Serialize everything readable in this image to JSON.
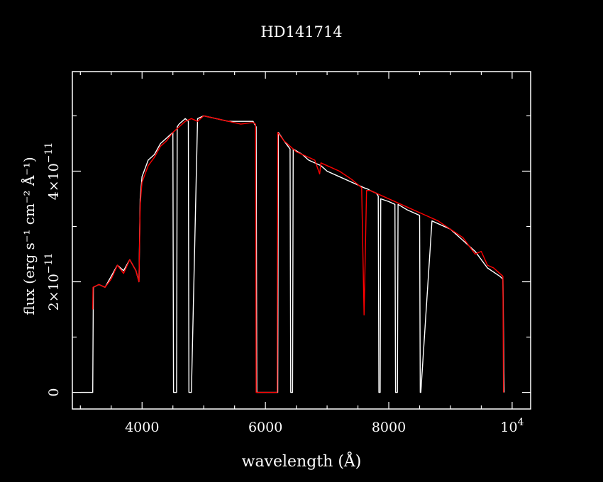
{
  "chart_data": {
    "type": "line",
    "title": "HD141714",
    "xlabel": "wavelength (Å)",
    "ylabel": "flux (erg s⁻¹ cm⁻² Å⁻¹)",
    "xlim": [
      2870,
      10300
    ],
    "ylim": [
      -3e-12,
      5.8e-11
    ],
    "xticks": [
      {
        "value": 4000,
        "label": "4000"
      },
      {
        "value": 6000,
        "label": "6000"
      },
      {
        "value": 8000,
        "label": "8000"
      },
      {
        "value": 10000,
        "label": "10",
        "exponent": "4"
      }
    ],
    "yticks": [
      {
        "value": 0,
        "label": "0"
      },
      {
        "value": 2e-11,
        "label": "2×10",
        "exponent": "−11"
      },
      {
        "value": 4e-11,
        "label": "4×10",
        "exponent": "−11"
      }
    ],
    "grid": false,
    "colors": {
      "background": "#000000",
      "axes": "#ffffff",
      "series_white": "#ffffff",
      "series_red": "#ff0000"
    },
    "series": [
      {
        "color": "#ffffff",
        "x": [
          3000,
          3200,
          3210,
          3300,
          3400,
          3500,
          3600,
          3700,
          3800,
          3900,
          3950,
          3970,
          4000,
          4100,
          4200,
          4300,
          4400,
          4500,
          4510,
          4520,
          4560,
          4570,
          4600,
          4700,
          4750,
          4760,
          4800,
          4900,
          5000,
          5200,
          5400,
          5600,
          5800,
          5850,
          5860,
          6200,
          6210,
          6300,
          6400,
          6410,
          6420,
          6440,
          6450,
          6600,
          6700,
          6900,
          7000,
          7200,
          7400,
          7600,
          7650,
          7700,
          7800,
          7830,
          7840,
          7860,
          7870,
          8000,
          8100,
          8110,
          8120,
          8140,
          8150,
          8300,
          8500,
          8510,
          8520,
          8700,
          9000,
          9200,
          9400,
          9600,
          9800,
          9850,
          9870
        ],
        "values": [
          0,
          0,
          1.9e-11,
          1.95e-11,
          1.9e-11,
          2.1e-11,
          2.3e-11,
          2.2e-11,
          2.4e-11,
          2.2e-11,
          2e-11,
          3.5e-11,
          3.9e-11,
          4.2e-11,
          4.3e-11,
          4.5e-11,
          4.6e-11,
          4.7e-11,
          0,
          0,
          0,
          4.8e-11,
          4.85e-11,
          4.95e-11,
          4.9e-11,
          0,
          0,
          4.95e-11,
          5e-11,
          4.95e-11,
          4.9e-11,
          4.9e-11,
          4.9e-11,
          4.8e-11,
          0,
          0,
          4.7e-11,
          4.55e-11,
          4.4e-11,
          0,
          0,
          0,
          4.4e-11,
          4.3e-11,
          4.2e-11,
          4.1e-11,
          4e-11,
          3.9e-11,
          3.8e-11,
          3.7e-11,
          3.68e-11,
          3.65e-11,
          3.6e-11,
          3.55e-11,
          0,
          0,
          3.5e-11,
          3.45e-11,
          3.4e-11,
          0,
          0,
          0,
          3.4e-11,
          3.3e-11,
          3.2e-11,
          0,
          0,
          3.1e-11,
          2.95e-11,
          2.75e-11,
          2.55e-11,
          2.25e-11,
          2.1e-11,
          2.05e-11,
          0
        ]
      },
      {
        "color": "#ff0000",
        "x": [
          3200,
          3205,
          3300,
          3400,
          3500,
          3600,
          3700,
          3800,
          3900,
          3950,
          3970,
          4000,
          4100,
          4200,
          4300,
          4400,
          4500,
          4600,
          4700,
          4800,
          4900,
          5000,
          5200,
          5400,
          5600,
          5800,
          5840,
          5850,
          6190,
          6200,
          6300,
          6400,
          6500,
          6600,
          6800,
          6880,
          6900,
          7000,
          7200,
          7400,
          7560,
          7600,
          7640,
          7700,
          7800,
          8000,
          8200,
          8400,
          8600,
          8800,
          9000,
          9200,
          9300,
          9400,
          9500,
          9600,
          9700,
          9800,
          9850,
          9860
        ],
        "values": [
          1.5e-11,
          1.9e-11,
          1.95e-11,
          1.9e-11,
          2.05e-11,
          2.3e-11,
          2.15e-11,
          2.4e-11,
          2.2e-11,
          2e-11,
          3.4e-11,
          3.8e-11,
          4.1e-11,
          4.25e-11,
          4.45e-11,
          4.55e-11,
          4.7e-11,
          4.8e-11,
          4.9e-11,
          4.95e-11,
          4.9e-11,
          5e-11,
          4.95e-11,
          4.9e-11,
          4.85e-11,
          4.88e-11,
          4.85e-11,
          0,
          0,
          4.7e-11,
          4.55e-11,
          4.45e-11,
          4.35e-11,
          4.3e-11,
          4.2e-11,
          3.95e-11,
          4.15e-11,
          4.1e-11,
          4e-11,
          3.85e-11,
          3.7e-11,
          1.4e-11,
          3.65e-11,
          3.65e-11,
          3.6e-11,
          3.5e-11,
          3.4e-11,
          3.3e-11,
          3.2e-11,
          3.1e-11,
          2.95e-11,
          2.8e-11,
          2.65e-11,
          2.5e-11,
          2.55e-11,
          2.3e-11,
          2.25e-11,
          2.15e-11,
          2.1e-11,
          0
        ]
      }
    ]
  }
}
